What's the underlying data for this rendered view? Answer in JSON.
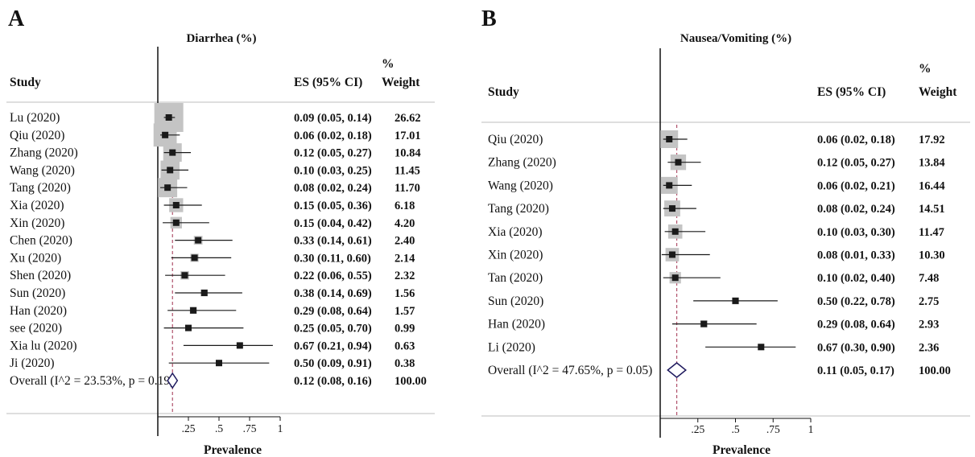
{
  "chart_data": [
    {
      "type": "forest",
      "panel": "A",
      "title": "Diarrhea (%)",
      "xlabel": "Prevalence",
      "xlim": [
        0,
        1
      ],
      "xticks": [
        0.25,
        0.5,
        0.75,
        1
      ],
      "xtick_labels": [
        ".25",
        ".5",
        ".75",
        "1"
      ],
      "columns": {
        "study": "Study",
        "es": "ES (95% CI)",
        "weight_line1": "%",
        "weight_line2": "Weight"
      },
      "overall_line": 0.12,
      "studies": [
        {
          "label": "Lu (2020)",
          "es": 0.09,
          "lo": 0.05,
          "hi": 0.14,
          "es_text": "0.09 (0.05, 0.14)",
          "weight": 26.62,
          "weight_text": "26.62"
        },
        {
          "label": "Qiu (2020)",
          "es": 0.06,
          "lo": 0.02,
          "hi": 0.18,
          "es_text": "0.06 (0.02, 0.18)",
          "weight": 17.01,
          "weight_text": "17.01"
        },
        {
          "label": "Zhang (2020)",
          "es": 0.12,
          "lo": 0.05,
          "hi": 0.27,
          "es_text": "0.12 (0.05, 0.27)",
          "weight": 10.84,
          "weight_text": "10.84"
        },
        {
          "label": "Wang (2020)",
          "es": 0.1,
          "lo": 0.03,
          "hi": 0.25,
          "es_text": "0.10 (0.03, 0.25)",
          "weight": 11.45,
          "weight_text": "11.45"
        },
        {
          "label": "Tang (2020)",
          "es": 0.08,
          "lo": 0.02,
          "hi": 0.24,
          "es_text": "0.08 (0.02, 0.24)",
          "weight": 11.7,
          "weight_text": "11.70"
        },
        {
          "label": "Xia (2020)",
          "es": 0.15,
          "lo": 0.05,
          "hi": 0.36,
          "es_text": "0.15 (0.05, 0.36)",
          "weight": 6.18,
          "weight_text": "6.18"
        },
        {
          "label": "Xin (2020)",
          "es": 0.15,
          "lo": 0.04,
          "hi": 0.42,
          "es_text": "0.15 (0.04, 0.42)",
          "weight": 4.2,
          "weight_text": "4.20"
        },
        {
          "label": "Chen (2020)",
          "es": 0.33,
          "lo": 0.14,
          "hi": 0.61,
          "es_text": "0.33 (0.14, 0.61)",
          "weight": 2.4,
          "weight_text": "2.40"
        },
        {
          "label": "Xu (2020)",
          "es": 0.3,
          "lo": 0.11,
          "hi": 0.6,
          "es_text": "0.30 (0.11, 0.60)",
          "weight": 2.14,
          "weight_text": "2.14"
        },
        {
          "label": "Shen (2020)",
          "es": 0.22,
          "lo": 0.06,
          "hi": 0.55,
          "es_text": "0.22 (0.06, 0.55)",
          "weight": 2.32,
          "weight_text": "2.32"
        },
        {
          "label": "Sun (2020)",
          "es": 0.38,
          "lo": 0.14,
          "hi": 0.69,
          "es_text": "0.38 (0.14, 0.69)",
          "weight": 1.56,
          "weight_text": "1.56"
        },
        {
          "label": "Han (2020)",
          "es": 0.29,
          "lo": 0.08,
          "hi": 0.64,
          "es_text": "0.29 (0.08, 0.64)",
          "weight": 1.57,
          "weight_text": "1.57"
        },
        {
          "label": "see (2020)",
          "es": 0.25,
          "lo": 0.05,
          "hi": 0.7,
          "es_text": "0.25 (0.05, 0.70)",
          "weight": 0.99,
          "weight_text": "0.99"
        },
        {
          "label": "Xia lu (2020)",
          "es": 0.67,
          "lo": 0.21,
          "hi": 0.94,
          "es_text": "0.67 (0.21, 0.94)",
          "weight": 0.63,
          "weight_text": "0.63"
        },
        {
          "label": "Ji (2020)",
          "es": 0.5,
          "lo": 0.09,
          "hi": 0.91,
          "es_text": "0.50 (0.09, 0.91)",
          "weight": 0.38,
          "weight_text": "0.38"
        }
      ],
      "overall": {
        "label": "Overall (I^2 = 23.53%, p = 0.19)",
        "es": 0.12,
        "lo": 0.08,
        "hi": 0.16,
        "es_text": "0.12 (0.08, 0.16)",
        "weight_text": "100.00"
      }
    },
    {
      "type": "forest",
      "panel": "B",
      "title": "Nausea/Vomiting (%)",
      "xlabel": "Prevalence",
      "xlim": [
        0,
        1
      ],
      "xticks": [
        0.25,
        0.5,
        0.75,
        1
      ],
      "xtick_labels": [
        ".25",
        ".5",
        ".75",
        "1"
      ],
      "columns": {
        "study": "Study",
        "es": "ES (95% CI)",
        "weight_line1": "%",
        "weight_line2": "Weight"
      },
      "overall_line": 0.11,
      "studies": [
        {
          "label": "Qiu (2020)",
          "es": 0.06,
          "lo": 0.02,
          "hi": 0.18,
          "es_text": "0.06 (0.02, 0.18)",
          "weight": 17.92,
          "weight_text": "17.92"
        },
        {
          "label": "Zhang (2020)",
          "es": 0.12,
          "lo": 0.05,
          "hi": 0.27,
          "es_text": "0.12 (0.05, 0.27)",
          "weight": 13.84,
          "weight_text": "13.84"
        },
        {
          "label": "Wang (2020)",
          "es": 0.06,
          "lo": 0.02,
          "hi": 0.21,
          "es_text": "0.06 (0.02, 0.21)",
          "weight": 16.44,
          "weight_text": "16.44"
        },
        {
          "label": "Tang (2020)",
          "es": 0.08,
          "lo": 0.02,
          "hi": 0.24,
          "es_text": "0.08 (0.02, 0.24)",
          "weight": 14.51,
          "weight_text": "14.51"
        },
        {
          "label": "Xia (2020)",
          "es": 0.1,
          "lo": 0.03,
          "hi": 0.3,
          "es_text": "0.10 (0.03, 0.30)",
          "weight": 11.47,
          "weight_text": "11.47"
        },
        {
          "label": "Xin (2020)",
          "es": 0.08,
          "lo": 0.01,
          "hi": 0.33,
          "es_text": "0.08 (0.01, 0.33)",
          "weight": 10.3,
          "weight_text": "10.30"
        },
        {
          "label": "Tan (2020)",
          "es": 0.1,
          "lo": 0.02,
          "hi": 0.4,
          "es_text": "0.10 (0.02, 0.40)",
          "weight": 7.48,
          "weight_text": "7.48"
        },
        {
          "label": "Sun (2020)",
          "es": 0.5,
          "lo": 0.22,
          "hi": 0.78,
          "es_text": "0.50 (0.22, 0.78)",
          "weight": 2.75,
          "weight_text": "2.75"
        },
        {
          "label": "Han (2020)",
          "es": 0.29,
          "lo": 0.08,
          "hi": 0.64,
          "es_text": "0.29 (0.08, 0.64)",
          "weight": 2.93,
          "weight_text": "2.93"
        },
        {
          "label": "Li (2020)",
          "es": 0.67,
          "lo": 0.3,
          "hi": 0.9,
          "es_text": "0.67 (0.30, 0.90)",
          "weight": 2.36,
          "weight_text": "2.36"
        }
      ],
      "overall": {
        "label": "Overall (I^2 = 47.65%, p = 0.05)",
        "es": 0.11,
        "lo": 0.05,
        "hi": 0.17,
        "es_text": "0.11 (0.05, 0.17)",
        "weight_text": "100.00"
      }
    }
  ],
  "colors": {
    "weight_box": "#c4c4c4",
    "point": "#1a1a1a",
    "overall_diamond": "#1f1a5e",
    "overall_line": "#b0506a",
    "axis": "#111111"
  }
}
